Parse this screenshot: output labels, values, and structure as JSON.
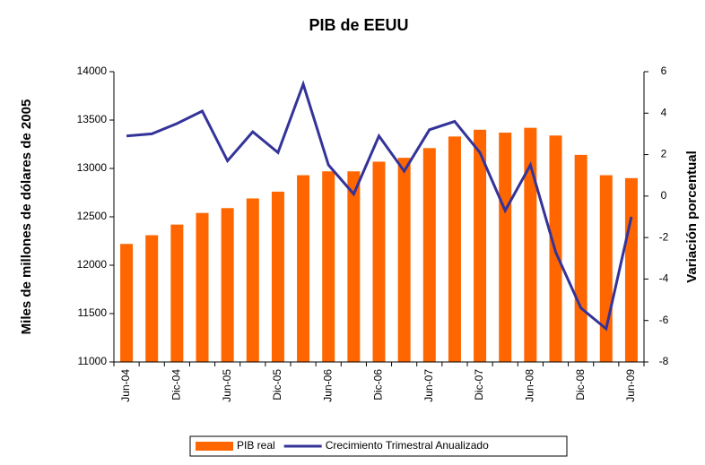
{
  "chart_data": {
    "type": "combo",
    "title": "PIB de EEUU",
    "y_label": "Miles de millones de dólares de 2005",
    "y2_label": "Variación porcentual",
    "categories": [
      "Jun-04",
      null,
      "Dic-04",
      null,
      "Jun-05",
      null,
      "Dic-05",
      null,
      "Jun-06",
      null,
      "Dic-06",
      null,
      "Jun-07",
      null,
      "Dic-07",
      null,
      "Jun-08",
      null,
      "Dic-08",
      null,
      "Jun-09"
    ],
    "series": [
      {
        "name": "PIB real",
        "type": "bar",
        "color": "#ff6600",
        "values": [
          12220,
          12310,
          12420,
          12540,
          12590,
          12690,
          12760,
          12930,
          12970,
          12970,
          13070,
          13110,
          13210,
          13330,
          13400,
          13370,
          13420,
          13340,
          13140,
          12930,
          12900
        ]
      },
      {
        "name": "Crecimiento Trimestral Anualizado",
        "type": "line",
        "color": "#333399",
        "axis": "y2",
        "values": [
          2.9,
          3.0,
          3.5,
          4.1,
          1.7,
          3.1,
          2.1,
          5.4,
          1.5,
          0.1,
          2.9,
          1.2,
          3.2,
          3.6,
          2.1,
          -0.7,
          1.5,
          -2.7,
          -5.4,
          -6.4,
          -1.0
        ]
      }
    ],
    "ylim": [
      11000,
      14000
    ],
    "yticks": [
      11000,
      11500,
      12000,
      12500,
      13000,
      13500,
      14000
    ],
    "y2lim": [
      -8,
      6
    ],
    "y2ticks": [
      -8,
      -6,
      -4,
      -2,
      0,
      2,
      4,
      6
    ],
    "grid": false,
    "legend": "bottom"
  }
}
